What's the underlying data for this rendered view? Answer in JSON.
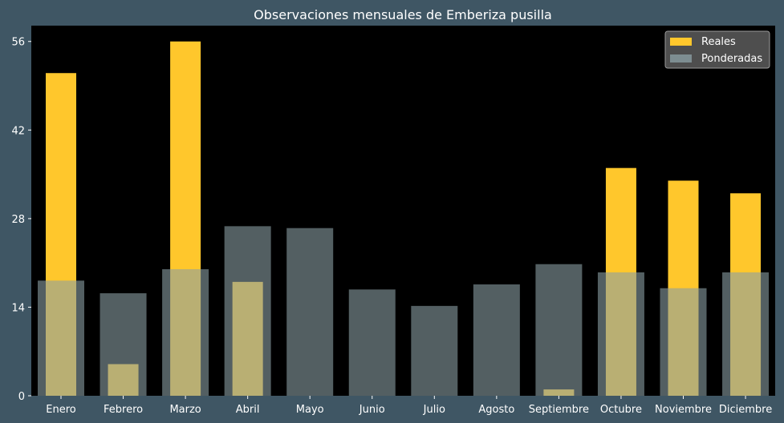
{
  "chart_data": {
    "type": "bar",
    "title": "Observaciones mensuales de Emberiza pusilla",
    "xlabel": "",
    "ylabel": "",
    "categories": [
      "Enero",
      "Febrero",
      "Marzo",
      "Abril",
      "Mayo",
      "Junio",
      "Julio",
      "Agosto",
      "Septiembre",
      "Octubre",
      "Noviembre",
      "Diciembre"
    ],
    "series": [
      {
        "name": "Reales",
        "color": "#ffc72c",
        "values": [
          51,
          5,
          56,
          18,
          0,
          0,
          0,
          0,
          1,
          36,
          34,
          32
        ]
      },
      {
        "name": "Ponderadas",
        "color": "#8a9ea3",
        "values": [
          18.2,
          16.2,
          20,
          26.8,
          26.5,
          16.8,
          14.2,
          17.6,
          20.8,
          19.5,
          17,
          19.5
        ]
      }
    ],
    "ylim": [
      0,
      58.5
    ],
    "yticks": [
      0,
      14,
      28,
      42,
      56
    ],
    "legend_position": "top-right",
    "grid": false,
    "colors": {
      "background": "#3f5664",
      "plot_area": "#000000",
      "text": "#ffffff",
      "legend_bg": "#555555"
    }
  }
}
